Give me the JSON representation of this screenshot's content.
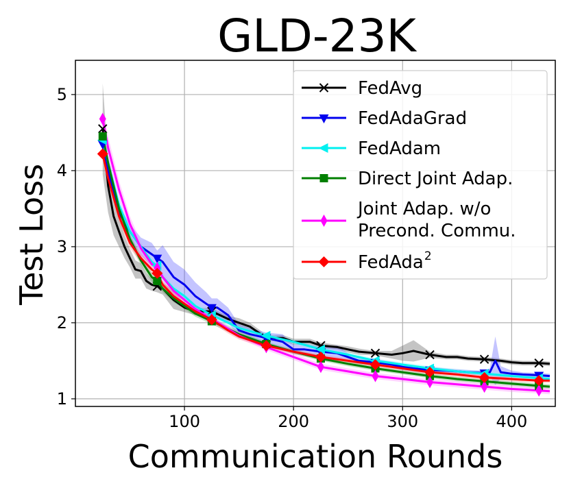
{
  "chart_data": {
    "type": "line",
    "title": "GLD-23K",
    "xlabel": "Communication Rounds",
    "ylabel": "Test Loss",
    "xlim": [
      0,
      440
    ],
    "ylim": [
      0.9,
      5.45
    ],
    "xticks": [
      100,
      200,
      300,
      400
    ],
    "yticks": [
      1,
      2,
      3,
      4,
      5
    ],
    "grid": true,
    "legend_position": "upper right",
    "series": [
      {
        "name": "FedAvg",
        "label_main": "FedAvg",
        "label_sup": "",
        "color": "#000000",
        "marker": "x",
        "band_color": "#555555",
        "x": [
          25,
          30,
          35,
          40,
          45,
          50,
          55,
          60,
          65,
          70,
          75,
          80,
          90,
          100,
          110,
          125,
          140,
          150,
          160,
          175,
          190,
          200,
          215,
          225,
          240,
          250,
          260,
          275,
          290,
          300,
          310,
          325,
          340,
          350,
          360,
          375,
          390,
          400,
          410,
          425,
          435
        ],
        "y": [
          4.55,
          3.8,
          3.4,
          3.2,
          3.0,
          2.85,
          2.7,
          2.68,
          2.55,
          2.5,
          2.48,
          2.45,
          2.3,
          2.2,
          2.15,
          2.15,
          2.05,
          2.0,
          1.95,
          1.8,
          1.8,
          1.75,
          1.75,
          1.7,
          1.68,
          1.65,
          1.62,
          1.6,
          1.58,
          1.6,
          1.63,
          1.58,
          1.55,
          1.55,
          1.53,
          1.52,
          1.5,
          1.48,
          1.47,
          1.47,
          1.46
        ],
        "band": [
          0.6,
          0.35,
          0.25,
          0.2,
          0.15,
          0.12,
          0.12,
          0.1,
          0.1,
          0.08,
          0.08,
          0.08,
          0.12,
          0.06,
          0.05,
          0.04,
          0.04,
          0.06,
          0.05,
          0.04,
          0.04,
          0.04,
          0.04,
          0.04,
          0.03,
          0.04,
          0.04,
          0.03,
          0.05,
          0.1,
          0.14,
          0.04,
          0.03,
          0.03,
          0.03,
          0.03,
          0.03,
          0.03,
          0.03,
          0.03,
          0.03
        ],
        "marker_x": [
          25,
          75,
          125,
          175,
          225,
          275,
          325,
          375,
          425
        ]
      },
      {
        "name": "FedAdaGrad",
        "label_main": "FedAdaGrad",
        "label_sup": "",
        "color": "#0000ee",
        "marker": "v",
        "band_color": "#5555ff",
        "x": [
          25,
          30,
          35,
          40,
          50,
          60,
          70,
          75,
          80,
          90,
          100,
          110,
          120,
          125,
          130,
          140,
          150,
          160,
          175,
          190,
          200,
          210,
          225,
          240,
          250,
          260,
          275,
          290,
          300,
          310,
          325,
          340,
          350,
          360,
          375,
          380,
          385,
          390,
          400,
          410,
          425,
          435
        ],
        "y": [
          4.35,
          4.0,
          3.7,
          3.45,
          3.2,
          3.0,
          2.9,
          2.85,
          2.8,
          2.6,
          2.5,
          2.35,
          2.25,
          2.2,
          2.2,
          2.1,
          1.9,
          1.85,
          1.8,
          1.75,
          1.65,
          1.65,
          1.62,
          1.6,
          1.55,
          1.5,
          1.48,
          1.45,
          1.42,
          1.4,
          1.38,
          1.37,
          1.36,
          1.35,
          1.34,
          1.35,
          1.5,
          1.35,
          1.33,
          1.32,
          1.31,
          1.3
        ],
        "band": [
          0.1,
          0.1,
          0.08,
          0.08,
          0.1,
          0.12,
          0.15,
          0.1,
          0.22,
          0.2,
          0.2,
          0.18,
          0.15,
          0.12,
          0.12,
          0.1,
          0.08,
          0.08,
          0.07,
          0.1,
          0.06,
          0.08,
          0.06,
          0.1,
          0.05,
          0.04,
          0.04,
          0.04,
          0.04,
          0.04,
          0.04,
          0.03,
          0.03,
          0.03,
          0.03,
          0.05,
          0.32,
          0.08,
          0.04,
          0.03,
          0.03,
          0.03
        ],
        "marker_x": [
          25,
          75,
          125,
          175,
          225,
          275,
          325,
          375,
          425
        ]
      },
      {
        "name": "FedAdam",
        "label_main": "FedAdam",
        "label_sup": "",
        "color": "#00f0f0",
        "marker": "<",
        "band_color": "#80f5f5",
        "x": [
          25,
          30,
          40,
          50,
          60,
          70,
          75,
          80,
          90,
          100,
          110,
          125,
          140,
          150,
          175,
          200,
          225,
          250,
          275,
          300,
          325,
          350,
          375,
          400,
          425,
          435
        ],
        "y": [
          4.4,
          4.1,
          3.55,
          3.2,
          3.0,
          2.8,
          2.75,
          2.6,
          2.45,
          2.35,
          2.22,
          2.1,
          2.0,
          1.93,
          1.83,
          1.75,
          1.65,
          1.58,
          1.5,
          1.45,
          1.4,
          1.36,
          1.33,
          1.3,
          1.27,
          1.26
        ],
        "band": [
          0.1,
          0.1,
          0.08,
          0.07,
          0.06,
          0.06,
          0.05,
          0.05,
          0.05,
          0.04,
          0.04,
          0.04,
          0.04,
          0.03,
          0.03,
          0.03,
          0.03,
          0.03,
          0.03,
          0.03,
          0.03,
          0.03,
          0.03,
          0.03,
          0.03,
          0.03
        ],
        "marker_x": [
          25,
          75,
          125,
          175,
          225,
          275,
          325,
          375,
          425
        ]
      },
      {
        "name": "Direct Joint Adap.",
        "label_main": "Direct Joint Adap.",
        "label_sup": "",
        "color": "#007f00",
        "marker": "s",
        "band_color": "#55aa55",
        "x": [
          25,
          30,
          40,
          50,
          60,
          70,
          75,
          80,
          90,
          100,
          110,
          125,
          140,
          150,
          175,
          200,
          225,
          250,
          275,
          300,
          325,
          350,
          375,
          400,
          425,
          435
        ],
        "y": [
          4.45,
          4.1,
          3.5,
          3.1,
          2.82,
          2.6,
          2.55,
          2.45,
          2.32,
          2.22,
          2.12,
          2.02,
          1.92,
          1.85,
          1.72,
          1.62,
          1.53,
          1.46,
          1.4,
          1.35,
          1.3,
          1.26,
          1.23,
          1.2,
          1.17,
          1.16
        ],
        "band": [
          0.08,
          0.08,
          0.07,
          0.07,
          0.06,
          0.06,
          0.05,
          0.05,
          0.05,
          0.04,
          0.04,
          0.04,
          0.04,
          0.04,
          0.03,
          0.03,
          0.03,
          0.03,
          0.03,
          0.03,
          0.03,
          0.03,
          0.03,
          0.03,
          0.03,
          0.03
        ],
        "marker_x": [
          25,
          75,
          125,
          175,
          225,
          275,
          325,
          375,
          425
        ]
      },
      {
        "name": "Joint Adap. w/o Precond. Commu.",
        "label_main": "Joint Adap. w/o",
        "label_line2": "Precond. Commu.",
        "label_sup": "",
        "color": "#ff00ff",
        "marker": "d",
        "band_color": "#ff80ff",
        "x": [
          25,
          30,
          40,
          50,
          60,
          70,
          75,
          80,
          90,
          100,
          110,
          125,
          140,
          150,
          175,
          200,
          225,
          250,
          275,
          300,
          325,
          350,
          375,
          400,
          425,
          435
        ],
        "y": [
          4.68,
          4.3,
          3.75,
          3.3,
          2.98,
          2.77,
          2.72,
          2.6,
          2.42,
          2.3,
          2.18,
          2.05,
          1.92,
          1.83,
          1.68,
          1.55,
          1.42,
          1.36,
          1.3,
          1.26,
          1.22,
          1.19,
          1.16,
          1.13,
          1.11,
          1.1
        ],
        "band": [
          0.1,
          0.15,
          0.12,
          0.1,
          0.08,
          0.07,
          0.06,
          0.06,
          0.05,
          0.05,
          0.05,
          0.04,
          0.04,
          0.04,
          0.04,
          0.04,
          0.04,
          0.04,
          0.04,
          0.04,
          0.04,
          0.04,
          0.04,
          0.04,
          0.04,
          0.04
        ],
        "marker_x": [
          25,
          75,
          125,
          175,
          225,
          275,
          325,
          375,
          425
        ]
      },
      {
        "name": "FedAda²",
        "label_main": "FedAda",
        "label_sup": "2",
        "color": "#ff0000",
        "marker": "D",
        "band_color": "#ff8080",
        "x": [
          25,
          30,
          40,
          50,
          60,
          70,
          75,
          80,
          90,
          100,
          110,
          125,
          140,
          150,
          175,
          200,
          225,
          250,
          275,
          300,
          325,
          350,
          375,
          400,
          425,
          435
        ],
        "y": [
          4.22,
          3.9,
          3.4,
          3.05,
          2.85,
          2.7,
          2.65,
          2.5,
          2.35,
          2.25,
          2.15,
          2.04,
          1.9,
          1.82,
          1.7,
          1.62,
          1.55,
          1.5,
          1.45,
          1.4,
          1.35,
          1.32,
          1.28,
          1.26,
          1.24,
          1.24
        ],
        "band": [
          0.08,
          0.08,
          0.07,
          0.07,
          0.06,
          0.06,
          0.05,
          0.05,
          0.05,
          0.04,
          0.04,
          0.04,
          0.04,
          0.04,
          0.03,
          0.03,
          0.03,
          0.03,
          0.03,
          0.03,
          0.03,
          0.03,
          0.03,
          0.03,
          0.03,
          0.03
        ],
        "marker_x": [
          25,
          75,
          125,
          175,
          225,
          275,
          325,
          375,
          425
        ]
      }
    ]
  }
}
